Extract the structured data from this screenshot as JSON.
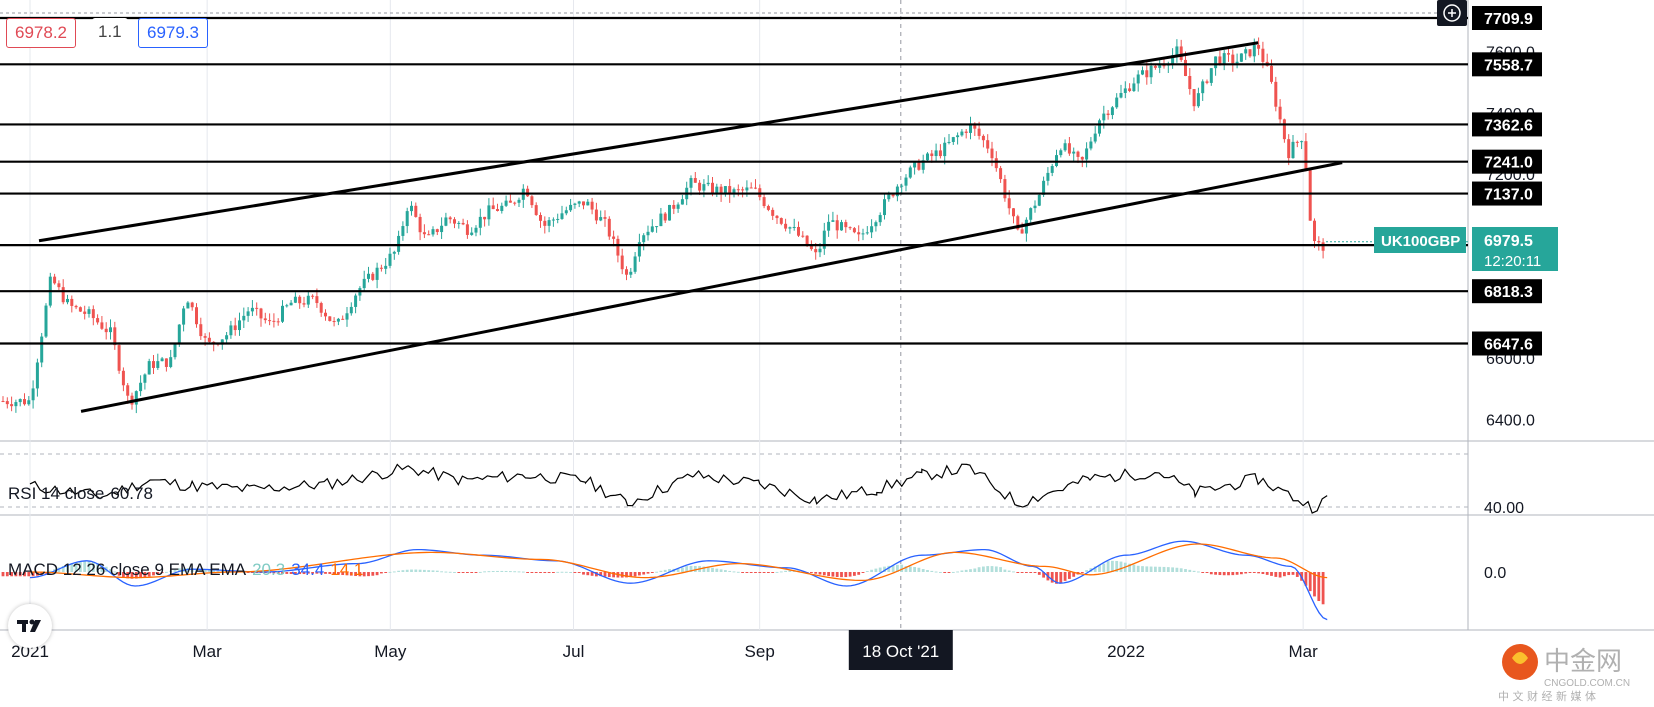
{
  "header": {
    "bid": "6978.2",
    "spread": "1.1",
    "ask": "6979.3"
  },
  "chart_data": {
    "type": "candlestick",
    "symbol_label": "UK100GBP",
    "current_price": "6979.5",
    "countdown": "12:20:11",
    "x_ticks": [
      "2021",
      "Mar",
      "May",
      "Jul",
      "Sep",
      "18 Oct '21",
      "2022",
      "Mar"
    ],
    "crosshair_date": "18 Oct '21",
    "y_ticks": [
      {
        "label": "7600.0",
        "value": 7600
      },
      {
        "label": "7400.0",
        "value": 7400
      },
      {
        "label": "7200.0",
        "value": 7200
      },
      {
        "label": "6600.0",
        "value": 6600
      },
      {
        "label": "6400.0",
        "value": 6400
      }
    ],
    "horizontal_levels": [
      {
        "label": "7709.9",
        "value": 7709.9
      },
      {
        "label": "7558.7",
        "value": 7558.7
      },
      {
        "label": "7362.6",
        "value": 7362.6
      },
      {
        "label": "7241.0",
        "value": 7241.0
      },
      {
        "label": "7137.0",
        "value": 7137.0
      },
      {
        "label": "6968.7",
        "value": 6968.7
      },
      {
        "label": "6818.3",
        "value": 6818.3
      },
      {
        "label": "6647.6",
        "value": 6647.6
      }
    ],
    "channel_lines": [
      {
        "from": [
          "2021-01-04",
          6983
        ],
        "to": [
          "2022-02-14",
          7629
        ]
      },
      {
        "from": [
          "2021-01-18",
          6426
        ],
        "to": [
          "2022-03-14",
          7238
        ]
      }
    ],
    "price_path": [
      [
        "2021-01-01",
        6460
      ],
      [
        "2021-01-08",
        6860
      ],
      [
        "2021-01-14",
        6770
      ],
      [
        "2021-01-21",
        6740
      ],
      [
        "2021-01-28",
        6680
      ],
      [
        "2021-02-03",
        6450
      ],
      [
        "2021-02-10",
        6580
      ],
      [
        "2021-02-17",
        6590
      ],
      [
        "2021-02-22",
        6810
      ],
      [
        "2021-03-01",
        6640
      ],
      [
        "2021-03-08",
        6680
      ],
      [
        "2021-03-15",
        6760
      ],
      [
        "2021-03-22",
        6710
      ],
      [
        "2021-03-29",
        6780
      ],
      [
        "2021-04-06",
        6790
      ],
      [
        "2021-04-13",
        6700
      ],
      [
        "2021-04-20",
        6820
      ],
      [
        "2021-04-28",
        6900
      ],
      [
        "2021-05-03",
        6950
      ],
      [
        "2021-05-07",
        7110
      ],
      [
        "2021-05-13",
        6980
      ],
      [
        "2021-05-20",
        7060
      ],
      [
        "2021-05-27",
        7020
      ],
      [
        "2021-06-03",
        7080
      ],
      [
        "2021-06-10",
        7100
      ],
      [
        "2021-06-15",
        7160
      ],
      [
        "2021-06-21",
        7030
      ],
      [
        "2021-06-28",
        7080
      ],
      [
        "2021-07-05",
        7110
      ],
      [
        "2021-07-12",
        7030
      ],
      [
        "2021-07-19",
        6860
      ],
      [
        "2021-07-23",
        7000
      ],
      [
        "2021-08-02",
        7080
      ],
      [
        "2021-08-09",
        7170
      ],
      [
        "2021-08-16",
        7150
      ],
      [
        "2021-08-23",
        7140
      ],
      [
        "2021-08-30",
        7150
      ],
      [
        "2021-09-06",
        7070
      ],
      [
        "2021-09-13",
        7010
      ],
      [
        "2021-09-20",
        6930
      ],
      [
        "2021-09-24",
        7050
      ],
      [
        "2021-10-04",
        6990
      ],
      [
        "2021-10-11",
        7080
      ],
      [
        "2021-10-18",
        7180
      ],
      [
        "2021-10-25",
        7240
      ],
      [
        "2021-11-01",
        7280
      ],
      [
        "2021-11-10",
        7360
      ],
      [
        "2021-11-17",
        7280
      ],
      [
        "2021-11-26",
        7000
      ],
      [
        "2021-12-03",
        7130
      ],
      [
        "2021-12-10",
        7300
      ],
      [
        "2021-12-17",
        7230
      ],
      [
        "2021-12-23",
        7380
      ],
      [
        "2022-01-04",
        7510
      ],
      [
        "2022-01-11",
        7550
      ],
      [
        "2022-01-18",
        7600
      ],
      [
        "2022-01-24",
        7430
      ],
      [
        "2022-01-31",
        7580
      ],
      [
        "2022-02-07",
        7570
      ],
      [
        "2022-02-14",
        7620
      ],
      [
        "2022-02-18",
        7510
      ],
      [
        "2022-02-24",
        7270
      ],
      [
        "2022-03-01",
        7330
      ],
      [
        "2022-03-04",
        6980
      ],
      [
        "2022-03-07",
        6960
      ],
      [
        "2022-03-09",
        6979
      ]
    ],
    "rsi": {
      "label": "RSI 14 close",
      "value": "60.78",
      "tick": "40.00",
      "path": [
        [
          "2021-01-01",
          52
        ],
        [
          "2021-01-25",
          46
        ],
        [
          "2021-02-10",
          55
        ],
        [
          "2021-02-24",
          52
        ],
        [
          "2021-03-15",
          50
        ],
        [
          "2021-04-10",
          53
        ],
        [
          "2021-05-07",
          62
        ],
        [
          "2021-05-25",
          55
        ],
        [
          "2021-06-15",
          58
        ],
        [
          "2021-07-05",
          55
        ],
        [
          "2021-07-19",
          42
        ],
        [
          "2021-08-10",
          58
        ],
        [
          "2021-09-01",
          53
        ],
        [
          "2021-09-20",
          44
        ],
        [
          "2021-10-10",
          50
        ],
        [
          "2021-10-25",
          58
        ],
        [
          "2021-11-10",
          62
        ],
        [
          "2021-11-26",
          42
        ],
        [
          "2021-12-20",
          56
        ],
        [
          "2022-01-12",
          60
        ],
        [
          "2022-01-24",
          48
        ],
        [
          "2022-02-14",
          56
        ],
        [
          "2022-03-04",
          40
        ],
        [
          "2022-03-09",
          44
        ]
      ]
    },
    "macd": {
      "label": "MACD 12 26 close 9 EMA EMA",
      "histogram": "20.3",
      "macd": "34.4",
      "signal": "14.1",
      "tick": "0.0",
      "macd_path": [
        [
          "2021-01-01",
          -20
        ],
        [
          "2021-01-20",
          40
        ],
        [
          "2021-02-05",
          -50
        ],
        [
          "2021-02-24",
          10
        ],
        [
          "2021-03-20",
          0
        ],
        [
          "2021-04-20",
          30
        ],
        [
          "2021-05-10",
          80
        ],
        [
          "2021-06-01",
          60
        ],
        [
          "2021-06-25",
          40
        ],
        [
          "2021-07-20",
          -40
        ],
        [
          "2021-08-15",
          40
        ],
        [
          "2021-09-10",
          15
        ],
        [
          "2021-09-30",
          -50
        ],
        [
          "2021-10-25",
          60
        ],
        [
          "2021-11-15",
          80
        ],
        [
          "2021-12-01",
          20
        ],
        [
          "2021-12-10",
          -40
        ],
        [
          "2022-01-01",
          60
        ],
        [
          "2022-01-20",
          110
        ],
        [
          "2022-02-10",
          60
        ],
        [
          "2022-02-25",
          20
        ],
        [
          "2022-03-09",
          -170
        ]
      ],
      "signal_path": [
        [
          "2021-01-01",
          0
        ],
        [
          "2021-02-05",
          -20
        ],
        [
          "2021-03-10",
          0
        ],
        [
          "2021-05-15",
          70
        ],
        [
          "2021-06-20",
          45
        ],
        [
          "2021-07-25",
          -20
        ],
        [
          "2021-08-25",
          30
        ],
        [
          "2021-10-05",
          -30
        ],
        [
          "2021-11-05",
          70
        ],
        [
          "2021-12-05",
          20
        ],
        [
          "2021-12-20",
          -10
        ],
        [
          "2022-01-25",
          100
        ],
        [
          "2022-02-20",
          50
        ],
        [
          "2022-03-09",
          -20
        ]
      ]
    },
    "colors": {
      "up": "#26a69a",
      "down": "#ef5350",
      "level_line": "#000000",
      "rsi_line": "#000000",
      "macd_line": "#2962ff",
      "signal_line": "#ff6d00",
      "label_bg": "#000000",
      "symbol_bg": "#26a69a",
      "hist_up": "#b2dfdb",
      "hist_down": "#ef5350",
      "bid": "#e04a55",
      "ask": "#2962ff"
    }
  },
  "watermark": {
    "logo_text": "中金网",
    "site": "CNGOLD.COM.CN",
    "subtitle": "中 文 财 经 新 媒 体"
  }
}
